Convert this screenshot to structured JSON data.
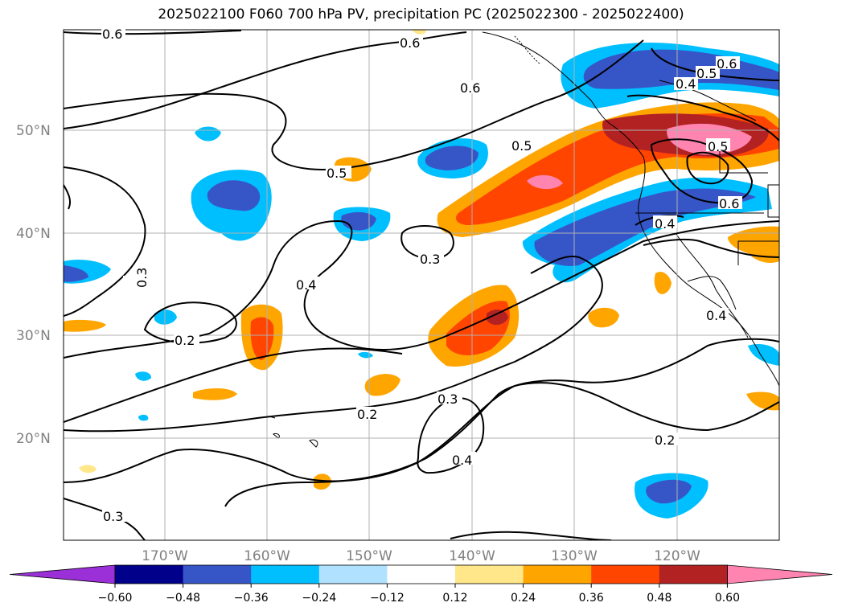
{
  "title": "2025022100 F060 700 hPa PV, precipitation PC (2025022300 - 2025022400)",
  "map": {
    "lat_labels": [
      "50°N",
      "40°N",
      "30°N",
      "20°N"
    ],
    "lon_labels": [
      "170°W",
      "160°W",
      "150°W",
      "140°W",
      "130°W",
      "120°W"
    ],
    "contour_labels": [
      "0.6",
      "0.6",
      "0.6",
      "0.5",
      "0.5",
      "0.5",
      "0.4",
      "0.4",
      "0.4",
      "0.3",
      "0.3",
      "0.3",
      "0.2",
      "0.2",
      "0.2",
      "0.6",
      "0.5",
      "0.4",
      "0.4"
    ]
  },
  "colorbar": {
    "ticks": [
      "−0.60",
      "−0.48",
      "−0.36",
      "−0.24",
      "−0.12",
      "0.12",
      "0.24",
      "0.36",
      "0.48",
      "0.60"
    ],
    "colors": [
      "#9b30d9",
      "#00008b",
      "#3656c8",
      "#00bfff",
      "#b0e2ff",
      "#ffffff",
      "#ffe78a",
      "#ffa500",
      "#ff4500",
      "#b22222",
      "#ff85b0"
    ]
  }
}
